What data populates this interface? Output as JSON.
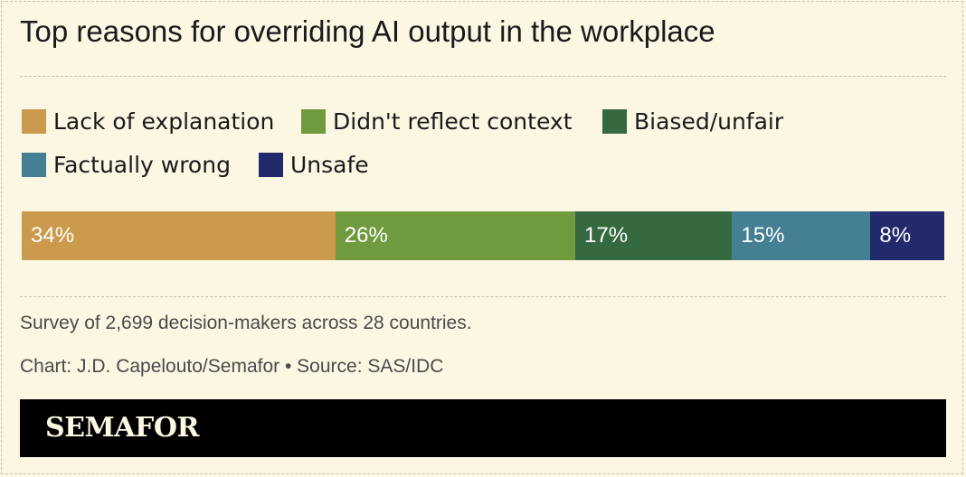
{
  "title": "Top reasons for overriding AI output in the workplace",
  "chart_data": {
    "type": "bar",
    "orientation": "horizontal-stacked",
    "unit": "%",
    "legend_position": "top",
    "grid": false,
    "categories": [
      "Lack of explanation",
      "Didn't reflect context",
      "Biased/unfair",
      "Factually wrong",
      "Unsafe"
    ],
    "values": [
      34,
      26,
      17,
      15,
      8
    ],
    "labels": [
      "34%",
      "26%",
      "17%",
      "15%",
      "8%"
    ],
    "colors": [
      "#cc9a4c",
      "#6f9b3e",
      "#356a40",
      "#447f93",
      "#222a6b"
    ]
  },
  "footnote": "Survey of 2,699 decision-makers across 28 countries.",
  "credit": "Chart: J.D. Capelouto/Semafor • Source: SAS/IDC",
  "brand": "SEMAFOR"
}
